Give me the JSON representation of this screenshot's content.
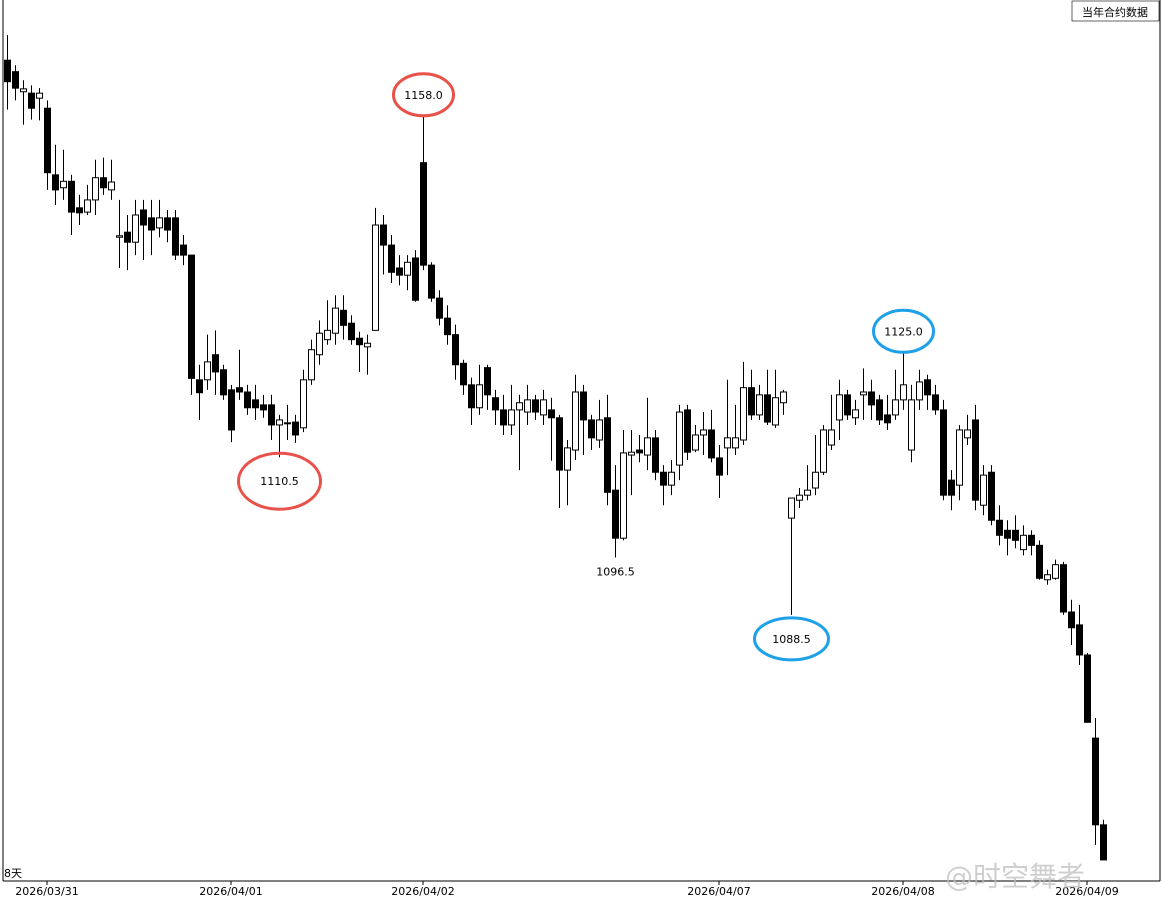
{
  "chart_data": {
    "type": "candlestick",
    "top_right_label": "当年合约数据",
    "bottom_left_label": "8天",
    "watermark": "@时空舞者",
    "up_color": "#ffffff",
    "down_color": "#000000",
    "ylim": [
      1051.5,
      1174.3
    ],
    "categories": [
      null,
      null,
      null,
      null,
      null,
      "2026/03/31",
      null,
      null,
      null,
      null,
      null,
      null,
      null,
      null,
      null,
      null,
      null,
      null,
      null,
      null,
      null,
      null,
      null,
      null,
      null,
      null,
      null,
      null,
      "2026/04/01",
      null,
      null,
      null,
      null,
      null,
      null,
      null,
      null,
      null,
      null,
      null,
      null,
      null,
      null,
      null,
      null,
      null,
      null,
      null,
      null,
      null,
      null,
      null,
      "2026/04/02",
      null,
      null,
      null,
      null,
      null,
      null,
      null,
      null,
      null,
      null,
      null,
      null,
      null,
      null,
      null,
      null,
      null,
      null,
      null,
      null,
      null,
      null,
      null,
      null,
      null,
      null,
      null,
      null,
      null,
      null,
      null,
      null,
      null,
      null,
      null,
      null,
      "2026/04/07",
      null,
      null,
      null,
      null,
      null,
      null,
      null,
      null,
      null,
      null,
      null,
      null,
      null,
      null,
      null,
      null,
      null,
      null,
      null,
      null,
      null,
      null,
      "2026/04/08",
      null,
      null,
      null,
      null,
      null,
      null,
      null,
      null,
      null,
      null,
      null,
      null,
      null,
      null,
      null,
      null,
      null,
      null,
      null,
      null,
      null,
      null,
      "2026/04/09",
      null,
      null
    ],
    "open": [
      1165.9,
      1164.3,
      1161.5,
      1161.3,
      1160.6,
      1159.2,
      1149.9,
      1148.1,
      1149.0,
      1145.3,
      1144.7,
      1146.4,
      1149.5,
      1147.8,
      1141.2,
      1141.9,
      1140.5,
      1145.0,
      1143.9,
      1142.5,
      1143.9,
      1143.9,
      1140.1,
      1138.7,
      1121.3,
      1121.3,
      1124.8,
      1122.7,
      1119.9,
      1120.2,
      1119.6,
      1118.5,
      1117.8,
      1117.8,
      1115.0,
      1115.3,
      1115.4,
      1114.6,
      1121.3,
      1124.8,
      1126.9,
      1127.8,
      1131.0,
      1129.2,
      1127.1,
      1125.9,
      1128.2,
      1142.9,
      1140.1,
      1136.9,
      1135.9,
      1138.3,
      1151.6,
      1137.3,
      1132.7,
      1129.9,
      1127.6,
      1123.6,
      1120.6,
      1117.4,
      1123.0,
      1118.8,
      1117.1,
      1115.0,
      1117.1,
      1116.8,
      1118.5,
      1116.4,
      1117.1,
      1116.0,
      1108.7,
      1111.5,
      1119.6,
      1115.7,
      1112.9,
      1116.0,
      1105.9,
      1099.2,
      1110.8,
      1111.5,
      1110.8,
      1113.2,
      1108.4,
      1106.6,
      1109.4,
      1117.1,
      1111.5,
      1113.6,
      1114.3,
      1110.4,
      1111.8,
      1111.8,
      1112.9,
      1120.2,
      1116.4,
      1119.2,
      1115.0,
      1118.1,
      1102.0,
      1104.5,
      1105.2,
      1106.2,
      1108.4,
      1112.2,
      1115.7,
      1119.2,
      1116.0,
      1119.2,
      1119.6,
      1118.5,
      1116.4,
      1116.4,
      1118.5,
      1111.5,
      1118.5,
      1121.3,
      1119.2,
      1117.1,
      1107.3,
      1106.6,
      1113.2,
      1115.7,
      1103.8,
      1108.4,
      1101.7,
      1100.3,
      1100.3,
      1097.6,
      1099.6,
      1098.2,
      1093.4,
      1093.6,
      1095.5,
      1088.9,
      1087.1,
      1082.9,
      1071.3,
      1059.2
    ],
    "high": [
      1169.4,
      1165.2,
      1163.1,
      1162.4,
      1162.0,
      1160.3,
      1154.1,
      1153.4,
      1149.9,
      1147.1,
      1148.5,
      1152.0,
      1152.3,
      1152.0,
      1146.4,
      1144.3,
      1146.4,
      1146.4,
      1146.4,
      1146.4,
      1145.0,
      1145.0,
      1141.5,
      1138.7,
      1123.4,
      1127.6,
      1128.2,
      1123.4,
      1120.6,
      1125.5,
      1120.6,
      1120.6,
      1119.2,
      1119.2,
      1116.4,
      1117.8,
      1116.4,
      1122.7,
      1126.9,
      1129.6,
      1132.4,
      1133.1,
      1133.1,
      1130.3,
      1128.0,
      1127.6,
      1145.3,
      1144.3,
      1141.5,
      1138.7,
      1138.7,
      1139.4,
      1158.0,
      1137.7,
      1133.8,
      1131.7,
      1129.0,
      1124.1,
      1121.6,
      1123.4,
      1123.4,
      1119.9,
      1119.2,
      1120.6,
      1119.2,
      1120.6,
      1119.2,
      1119.9,
      1118.8,
      1116.4,
      1112.9,
      1122.0,
      1120.6,
      1116.4,
      1118.5,
      1119.2,
      1109.4,
      1114.3,
      1114.3,
      1113.6,
      1118.8,
      1114.3,
      1109.4,
      1110.1,
      1117.8,
      1117.8,
      1115.0,
      1116.8,
      1117.1,
      1112.2,
      1121.3,
      1117.8,
      1123.8,
      1122.7,
      1120.6,
      1122.7,
      1122.7,
      1119.9,
      1104.8,
      1106.2,
      1109.4,
      1113.6,
      1115.0,
      1119.2,
      1121.3,
      1119.9,
      1118.5,
      1122.9,
      1121.3,
      1119.2,
      1119.2,
      1122.7,
      1125.0,
      1120.6,
      1122.7,
      1122.0,
      1120.6,
      1118.5,
      1108.7,
      1115.0,
      1116.4,
      1117.8,
      1109.4,
      1109.4,
      1103.8,
      1101.7,
      1102.4,
      1101.0,
      1100.3,
      1098.9,
      1094.8,
      1096.2,
      1095.9,
      1090.6,
      1089.9,
      1083.2,
      1074.1,
      1059.9
    ],
    "low": [
      1159.0,
      1160.3,
      1156.9,
      1157.6,
      1157.5,
      1147.8,
      1145.7,
      1146.4,
      1141.5,
      1142.9,
      1144.3,
      1144.3,
      1147.1,
      1146.4,
      1136.9,
      1136.6,
      1138.7,
      1138.0,
      1138.7,
      1141.2,
      1140.5,
      1138.0,
      1137.3,
      1119.2,
      1115.7,
      1119.9,
      1119.2,
      1118.5,
      1112.6,
      1118.5,
      1116.4,
      1115.7,
      1116.0,
      1112.9,
      1110.5,
      1112.9,
      1112.5,
      1114.0,
      1120.6,
      1123.4,
      1126.2,
      1126.2,
      1126.9,
      1126.2,
      1122.4,
      1122.0,
      1128.2,
      1136.0,
      1134.8,
      1134.5,
      1133.8,
      1132.2,
      1136.6,
      1132.2,
      1128.9,
      1126.2,
      1121.3,
      1119.2,
      1115.0,
      1116.4,
      1117.1,
      1115.0,
      1113.6,
      1113.6,
      1108.7,
      1115.0,
      1115.7,
      1115.0,
      1110.0,
      1103.4,
      1103.8,
      1110.1,
      1110.8,
      1111.5,
      1111.8,
      1103.8,
      1096.5,
      1098.9,
      1105.2,
      1109.8,
      1108.7,
      1107.3,
      1103.8,
      1105.2,
      1107.3,
      1110.1,
      1111.2,
      1110.8,
      1109.8,
      1104.8,
      1108.0,
      1110.8,
      1112.2,
      1115.7,
      1115.7,
      1115.0,
      1114.6,
      1116.4,
      1088.5,
      1103.4,
      1104.5,
      1105.2,
      1108.0,
      1111.5,
      1112.9,
      1115.7,
      1115.0,
      1115.7,
      1115.7,
      1115.0,
      1114.3,
      1115.7,
      1117.1,
      1109.8,
      1117.1,
      1117.1,
      1116.4,
      1104.5,
      1103.1,
      1104.5,
      1112.2,
      1103.1,
      1102.4,
      1101.0,
      1098.2,
      1096.8,
      1097.8,
      1096.8,
      1096.8,
      1093.4,
      1092.7,
      1093.4,
      1088.5,
      1084.3,
      1081.5,
      1073.5,
      1056.4,
      1054.3
    ],
    "close": [
      1162.9,
      1162.0,
      1161.9,
      1159.2,
      1161.3,
      1150.2,
      1147.8,
      1149.0,
      1144.7,
      1144.6,
      1146.4,
      1149.5,
      1148.1,
      1148.9,
      1141.4,
      1140.5,
      1144.3,
      1142.9,
      1142.2,
      1143.9,
      1142.2,
      1138.7,
      1138.7,
      1121.5,
      1119.5,
      1123.8,
      1122.4,
      1119.2,
      1114.3,
      1119.6,
      1117.4,
      1117.4,
      1117.1,
      1115.0,
      1115.7,
      1115.3,
      1113.6,
      1121.3,
      1125.5,
      1127.8,
      1128.2,
      1131.3,
      1128.9,
      1126.9,
      1126.2,
      1126.4,
      1142.9,
      1140.1,
      1136.3,
      1135.9,
      1137.7,
      1132.4,
      1137.3,
      1132.7,
      1129.9,
      1127.6,
      1123.4,
      1120.6,
      1117.4,
      1120.6,
      1119.2,
      1117.1,
      1115.0,
      1117.1,
      1118.1,
      1118.5,
      1116.8,
      1118.5,
      1116.0,
      1108.7,
      1111.8,
      1119.6,
      1115.7,
      1113.2,
      1115.7,
      1105.6,
      1099.2,
      1111.1,
      1111.2,
      1111.1,
      1113.2,
      1108.4,
      1106.6,
      1108.4,
      1116.8,
      1111.2,
      1113.6,
      1114.3,
      1110.4,
      1108.0,
      1113.2,
      1113.2,
      1120.2,
      1116.4,
      1119.2,
      1115.4,
      1118.8,
      1119.6,
      1104.8,
      1105.2,
      1105.9,
      1108.4,
      1114.3,
      1114.3,
      1119.2,
      1116.4,
      1117.1,
      1119.6,
      1117.8,
      1115.7,
      1115.3,
      1118.5,
      1120.6,
      1118.5,
      1121.0,
      1119.2,
      1117.1,
      1105.2,
      1105.2,
      1114.3,
      1114.3,
      1104.5,
      1108.0,
      1101.7,
      1099.6,
      1099.2,
      1098.9,
      1099.6,
      1098.2,
      1093.6,
      1094.1,
      1095.5,
      1088.9,
      1086.7,
      1082.9,
      1073.5,
      1059.2,
      1054.3
    ],
    "annotations": [
      {
        "label": "1158.0",
        "at": "high",
        "candle": 52,
        "circle": "#e8524a"
      },
      {
        "label": "1110.5",
        "at": "low",
        "candle": 34,
        "circle": "#e8524a"
      },
      {
        "label": "1096.5",
        "at": "low",
        "candle": 76
      },
      {
        "label": "1125.0",
        "at": "high",
        "candle": 112,
        "circle": "#1ea1e6"
      },
      {
        "label": "1088.5",
        "at": "low",
        "candle": 98,
        "circle": "#1ea1e6"
      }
    ]
  }
}
